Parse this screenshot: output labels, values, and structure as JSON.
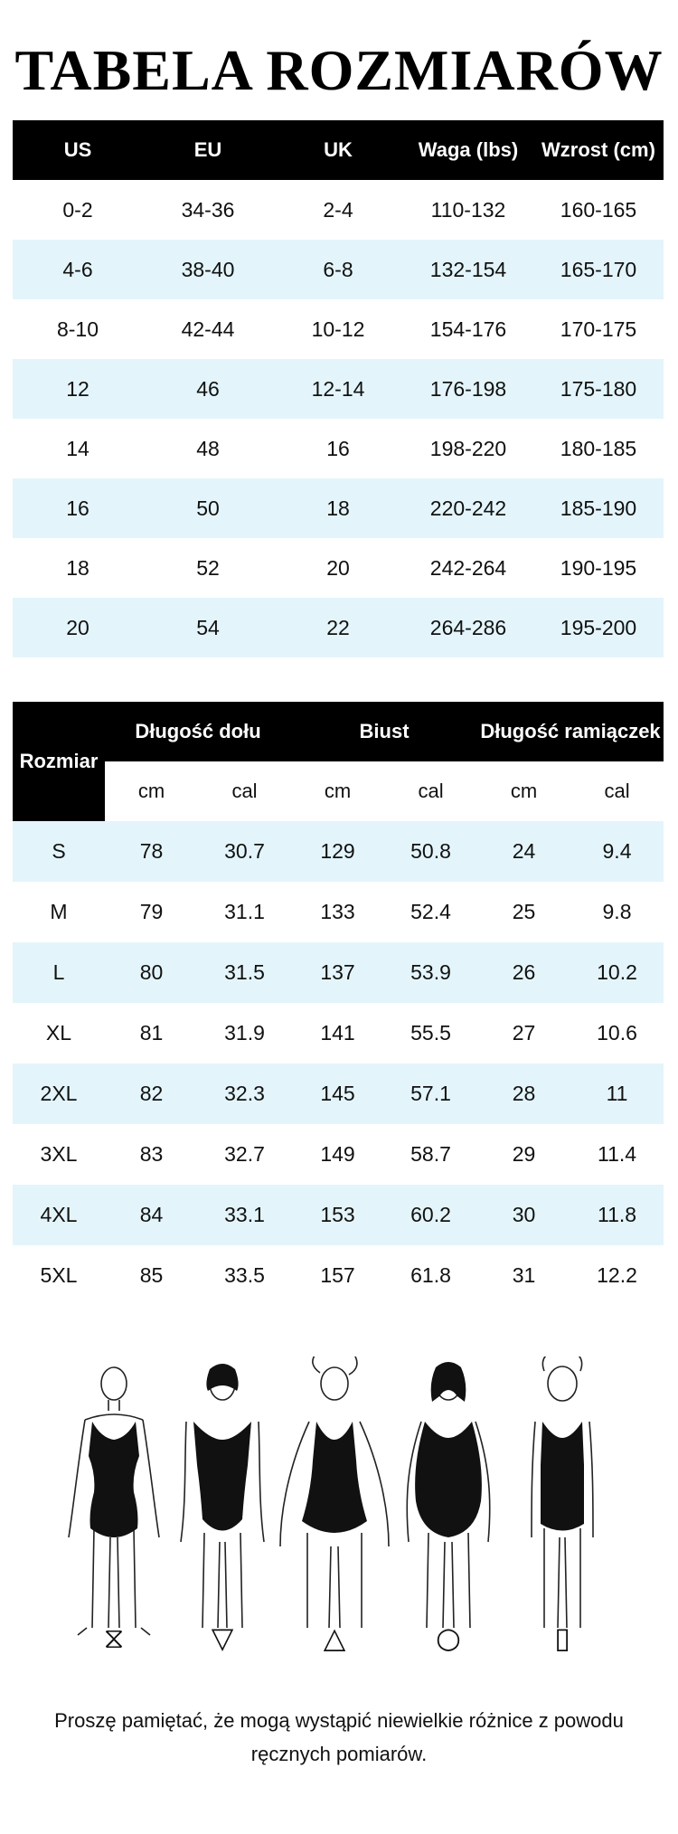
{
  "title": "TABELA ROZMIARÓW",
  "table1": {
    "headers": [
      "US",
      "EU",
      "UK",
      "Waga (lbs)",
      "Wzrost (cm)"
    ],
    "rows": [
      [
        "0-2",
        "34-36",
        "2-4",
        "110-132",
        "160-165"
      ],
      [
        "4-6",
        "38-40",
        "6-8",
        "132-154",
        "165-170"
      ],
      [
        "8-10",
        "42-44",
        "10-12",
        "154-176",
        "170-175"
      ],
      [
        "12",
        "46",
        "12-14",
        "176-198",
        "175-180"
      ],
      [
        "14",
        "48",
        "16",
        "198-220",
        "180-185"
      ],
      [
        "16",
        "50",
        "18",
        "220-242",
        "185-190"
      ],
      [
        "18",
        "52",
        "20",
        "242-264",
        "190-195"
      ],
      [
        "20",
        "54",
        "22",
        "264-286",
        "195-200"
      ]
    ]
  },
  "table2": {
    "size_header": "Rozmiar",
    "groups": [
      "Długość dołu",
      "Biust",
      "Długość ramiączek"
    ],
    "units": [
      "cm",
      "cal",
      "cm",
      "cal",
      "cm",
      "cal"
    ],
    "rows": [
      [
        "S",
        "78",
        "30.7",
        "129",
        "50.8",
        "24",
        "9.4"
      ],
      [
        "M",
        "79",
        "31.1",
        "133",
        "52.4",
        "25",
        "9.8"
      ],
      [
        "L",
        "80",
        "31.5",
        "137",
        "53.9",
        "26",
        "10.2"
      ],
      [
        "XL",
        "81",
        "31.9",
        "141",
        "55.5",
        "27",
        "10.6"
      ],
      [
        "2XL",
        "82",
        "32.3",
        "145",
        "57.1",
        "28",
        "11"
      ],
      [
        "3XL",
        "83",
        "32.7",
        "149",
        "58.7",
        "29",
        "11.4"
      ],
      [
        "4XL",
        "84",
        "33.1",
        "153",
        "60.2",
        "30",
        "11.8"
      ],
      [
        "5XL",
        "85",
        "33.5",
        "157",
        "61.8",
        "31",
        "12.2"
      ]
    ]
  },
  "body_shapes": [
    {
      "icon": "hourglass-shape-icon",
      "glyph": "⧖"
    },
    {
      "icon": "inverted-triangle-shape-icon",
      "glyph": "▽"
    },
    {
      "icon": "triangle-shape-icon",
      "glyph": "△"
    },
    {
      "icon": "oval-shape-icon",
      "glyph": "○"
    },
    {
      "icon": "rectangle-shape-icon",
      "glyph": "▯"
    }
  ],
  "note": "Proszę pamiętać, że mogą wystąpić niewielkie różnice z powodu ręcznych pomiarów."
}
